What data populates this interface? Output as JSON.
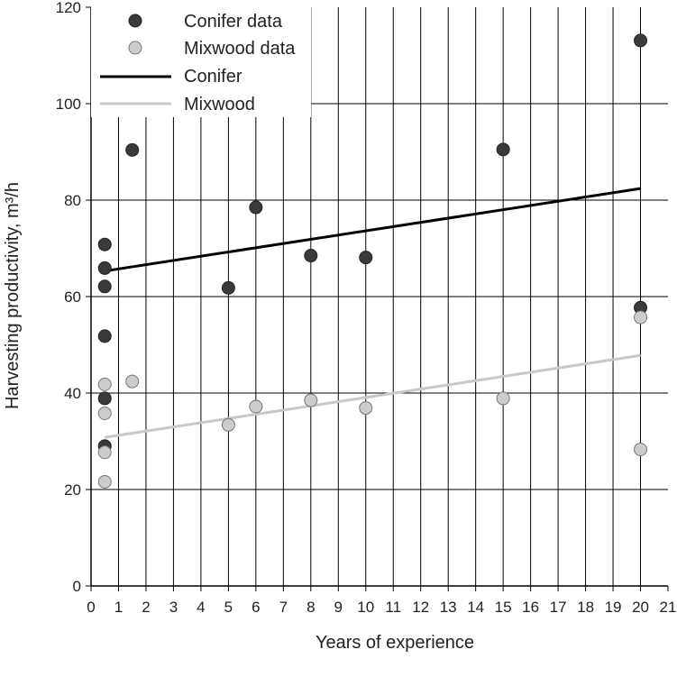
{
  "chart_data": {
    "type": "scatter",
    "xlabel": "Years of experience",
    "ylabel": "Harvesting productivity, m³/h",
    "xlim": [
      0,
      21
    ],
    "ylim": [
      0,
      120
    ],
    "xticks": [
      "0",
      "1",
      "2",
      "3",
      "4",
      "5",
      "6",
      "7",
      "8",
      "9",
      "10",
      "11",
      "12",
      "13",
      "14",
      "15",
      "16",
      "17",
      "18",
      "19",
      "20",
      "21"
    ],
    "yticks": [
      "0",
      "20",
      "40",
      "60",
      "80",
      "100",
      "120"
    ],
    "grid": "vertical at every year, horizontal at every 20",
    "legend": {
      "placement": "top-left",
      "entries": [
        "Conifer data",
        "Mixwood data",
        "Conifer",
        "Mixwood"
      ]
    },
    "series": [
      {
        "name": "Conifer data",
        "kind": "points",
        "color": "#3a3a3a",
        "points": [
          {
            "x": 0.5,
            "y": 70.8
          },
          {
            "x": 0.5,
            "y": 65.9
          },
          {
            "x": 0.5,
            "y": 62.1
          },
          {
            "x": 0.5,
            "y": 51.8
          },
          {
            "x": 0.5,
            "y": 38.9
          },
          {
            "x": 0.5,
            "y": 29.0
          },
          {
            "x": 1.5,
            "y": 90.4
          },
          {
            "x": 5,
            "y": 61.8
          },
          {
            "x": 6,
            "y": 78.5
          },
          {
            "x": 8,
            "y": 68.5
          },
          {
            "x": 10,
            "y": 68.1
          },
          {
            "x": 15,
            "y": 90.5
          },
          {
            "x": 20,
            "y": 113.1
          },
          {
            "x": 20,
            "y": 57.7
          }
        ]
      },
      {
        "name": "Mixwood data",
        "kind": "points",
        "color": "#cccccc",
        "points": [
          {
            "x": 0.5,
            "y": 41.8
          },
          {
            "x": 0.5,
            "y": 35.8
          },
          {
            "x": 0.5,
            "y": 27.7
          },
          {
            "x": 0.5,
            "y": 21.6
          },
          {
            "x": 1.5,
            "y": 42.4
          },
          {
            "x": 5,
            "y": 33.4
          },
          {
            "x": 6,
            "y": 37.2
          },
          {
            "x": 8,
            "y": 38.5
          },
          {
            "x": 10,
            "y": 36.9
          },
          {
            "x": 15,
            "y": 38.9
          },
          {
            "x": 20,
            "y": 55.7
          },
          {
            "x": 20,
            "y": 28.3
          }
        ]
      },
      {
        "name": "Conifer",
        "kind": "line",
        "color": "#000000",
        "points": [
          {
            "x": 0.5,
            "y": 65.3
          },
          {
            "x": 20,
            "y": 82.4
          }
        ]
      },
      {
        "name": "Mixwood",
        "kind": "line",
        "color": "#c8c8c8",
        "points": [
          {
            "x": 0.5,
            "y": 30.8
          },
          {
            "x": 20,
            "y": 47.8
          }
        ]
      }
    ]
  }
}
